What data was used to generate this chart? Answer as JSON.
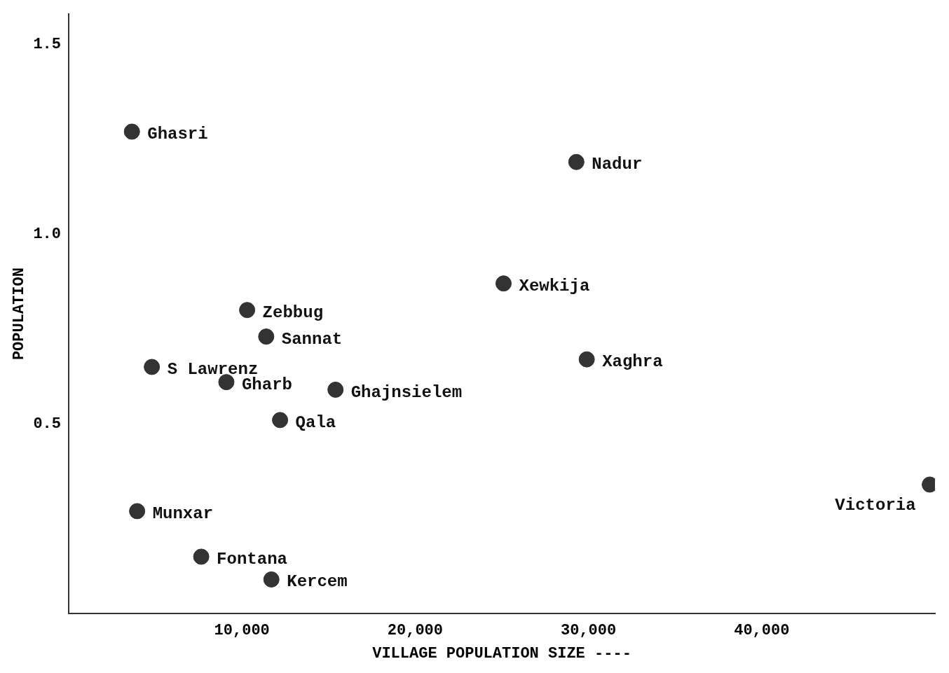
{
  "chart_data": {
    "type": "scatter",
    "ylabel": "POPULATION",
    "xlabel": "VILLAGE POPULATION SIZE ----",
    "xlim": [
      0,
      50000
    ],
    "ylim": [
      0,
      1.58
    ],
    "xticks": [
      {
        "value": 10000,
        "label": "10,000"
      },
      {
        "value": 20000,
        "label": "20,000"
      },
      {
        "value": 30000,
        "label": "30,000"
      },
      {
        "value": 40000,
        "label": "40,000"
      }
    ],
    "yticks": [
      0.5,
      {
        "value": 1,
        "label": "1.0"
      },
      1.5
    ],
    "grid": false,
    "legend": false,
    "marker": "circle",
    "x": [
      3650,
      29300,
      25100,
      10300,
      11400,
      4800,
      9100,
      15400,
      12200,
      29900,
      49700,
      3950,
      7650,
      11700
    ],
    "values": [
      1.27,
      1.19,
      0.87,
      0.8,
      0.73,
      0.65,
      0.61,
      0.59,
      0.51,
      0.67,
      0.34,
      0.27,
      0.15,
      0.09
    ],
    "color": "#333333",
    "annotations": [
      {
        "text": "Ghasri",
        "x": 3650,
        "y": 1.27
      },
      {
        "text": "Nadur",
        "x": 29300,
        "y": 1.19
      },
      {
        "text": "Xewkija",
        "x": 25100,
        "y": 0.87
      },
      {
        "text": "Zebbug",
        "x": 10300,
        "y": 0.8
      },
      {
        "text": "Sannat",
        "x": 11400,
        "y": 0.73
      },
      {
        "text": "S Lawrenz",
        "x": 4800,
        "y": 0.65
      },
      {
        "text": "Gharb",
        "x": 9100,
        "y": 0.61
      },
      {
        "text": "Ghajnsielem",
        "x": 15400,
        "y": 0.59
      },
      {
        "text": "Qala",
        "x": 12200,
        "y": 0.51
      },
      {
        "text": "Xaghra",
        "x": 29900,
        "y": 0.67
      },
      {
        "text": "Victoria",
        "x": 49700,
        "y": 0.34
      },
      {
        "text": "Munxar",
        "x": 3950,
        "y": 0.27
      },
      {
        "text": "Fontana",
        "x": 7650,
        "y": 0.15
      },
      {
        "text": "Kercem",
        "x": 11700,
        "y": 0.09
      }
    ]
  }
}
